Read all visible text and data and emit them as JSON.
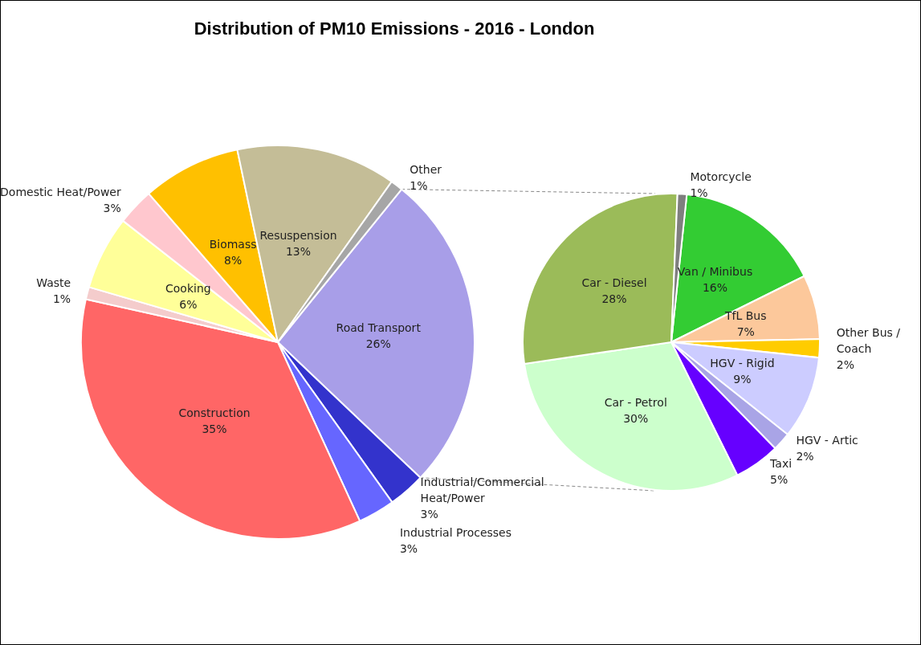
{
  "chart_data": [
    {
      "type": "pie",
      "title": "Distribution of PM10 Emissions - 2016 - London",
      "value_labels": [
        "26%",
        "3%",
        "3%",
        "35%",
        "1%",
        "6%",
        "3%",
        "8%",
        "13%",
        "1%"
      ],
      "categories": [
        "Road Transport",
        "Industrial/Commercial Heat/Power",
        "Industrial Processes",
        "Construction",
        "Waste",
        "Cooking",
        "Domestic Heat/Power",
        "Biomass",
        "Resuspension",
        "Other"
      ],
      "values": [
        26,
        3,
        3,
        35,
        1,
        6,
        3,
        8,
        13,
        1
      ],
      "colors": [
        "#a89ee8",
        "#3333cc",
        "#6666ff",
        "#ff6666",
        "#f4cccc",
        "#ffff99",
        "#ffc7ce",
        "#ffc000",
        "#c4bd97",
        "#a6a6a6"
      ]
    },
    {
      "type": "pie",
      "value_labels": [
        "16%",
        "7%",
        "2%",
        "9%",
        "2%",
        "5%",
        "30%",
        "28%",
        "1%"
      ],
      "categories": [
        "Van / Minibus",
        "TfL Bus",
        "Other Bus / Coach",
        "HGV - Rigid",
        "HGV - Artic",
        "Taxi",
        "Car - Petrol",
        "Car - Diesel",
        "Motorcycle"
      ],
      "values": [
        16,
        7,
        2,
        9,
        2,
        5,
        30,
        28,
        1
      ],
      "colors": [
        "#33cc33",
        "#fcc89b",
        "#ffcc00",
        "#ccccff",
        "#a9a4e6",
        "#6600ff",
        "#ccffcc",
        "#9bbb59",
        "#7f7f7f"
      ]
    }
  ]
}
